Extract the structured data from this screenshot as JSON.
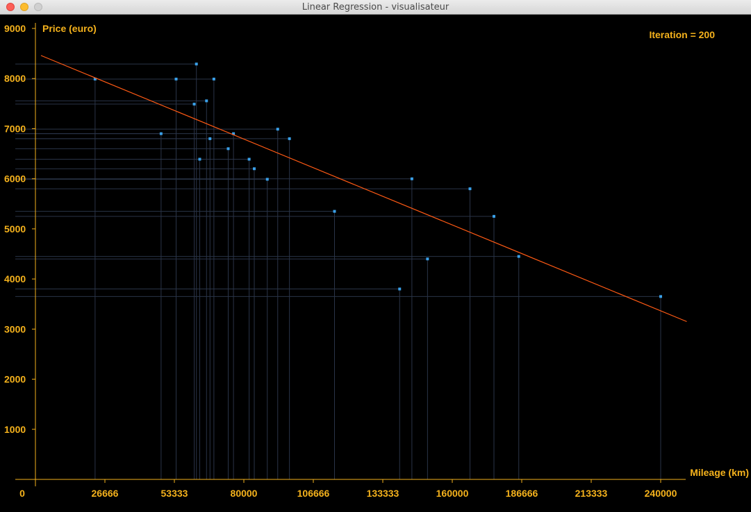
{
  "window": {
    "title": "Linear Regression - visualisateur"
  },
  "colors": {
    "axis": "#f5b21c",
    "points": "#3aa0e8",
    "guides": "#2a3448",
    "regression": "#ff5a14"
  },
  "iteration_label": "Iteration = 200",
  "chart_data": {
    "type": "scatter",
    "xlabel": "Mileage (km)",
    "ylabel": "Price (euro)",
    "xlim": [
      0,
      240000
    ],
    "ylim": [
      0,
      9000
    ],
    "x_ticks": [
      "0",
      "26666",
      "53333",
      "80000",
      "106666",
      "133333",
      "160000",
      "186666",
      "213333",
      "240000"
    ],
    "y_ticks": [
      "1000",
      "2000",
      "3000",
      "4000",
      "5000",
      "6000",
      "7000",
      "8000",
      "9000"
    ],
    "x": [
      240000,
      139800,
      150500,
      185530,
      176000,
      114800,
      166800,
      89000,
      144500,
      84000,
      82029,
      63060,
      74000,
      97500,
      67000,
      76025,
      48235,
      93000,
      60949,
      65674,
      54000,
      68500,
      22899,
      61789
    ],
    "y": [
      3650,
      3800,
      4400,
      4450,
      5250,
      5350,
      5800,
      5990,
      5999,
      6200,
      6390,
      6390,
      6600,
      6800,
      6800,
      6900,
      6900,
      6990,
      7490,
      7555,
      7990,
      7990,
      7990,
      8290
    ],
    "regression_line": {
      "x": [
        0,
        250000
      ],
      "y": [
        8460,
        3150
      ]
    }
  }
}
